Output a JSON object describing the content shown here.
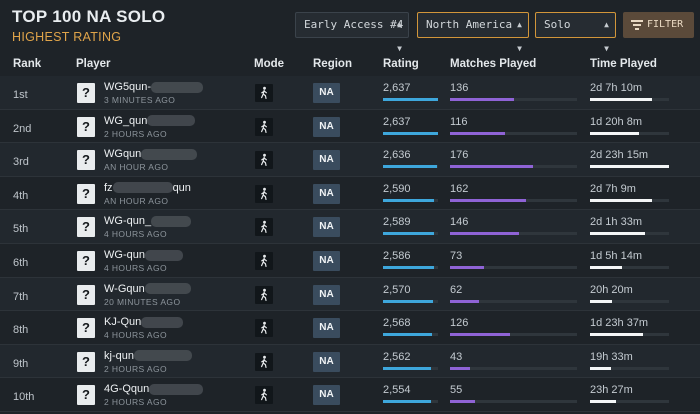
{
  "header": {
    "title": "TOP 100 NA SOLO",
    "subtitle": "HIGHEST RATING",
    "season_select": "Early Access #4",
    "region_select": "North America",
    "mode_select": "Solo",
    "filter_label": "FILTER"
  },
  "columns": {
    "rank": "Rank",
    "player": "Player",
    "mode": "Mode",
    "region": "Region",
    "rating": "Rating",
    "matches": "Matches Played",
    "time": "Time Played"
  },
  "colors": {
    "rating_bar": "#3ea7dc",
    "matches_bar": "#8f63d6",
    "time_bar": "#f4f6f7",
    "accent": "#d2963a"
  },
  "rows": [
    {
      "rank": "1st",
      "avatar": "?",
      "name": "WG5qun-",
      "name_suffix": "",
      "last_seen": "3 MINUTES AGO",
      "mode_icon": "walking-person-icon",
      "region": "NA",
      "rating": "2,637",
      "rating_pct": 1.0,
      "matches": "136",
      "matches_pct": 0.5,
      "time": "2d 7h 10m",
      "time_pct": 0.78
    },
    {
      "rank": "2nd",
      "avatar": "?",
      "name": "WG_qun",
      "name_suffix": "",
      "last_seen": "2 HOURS AGO",
      "mode_icon": "walking-person-icon",
      "region": "NA",
      "rating": "2,637",
      "rating_pct": 1.0,
      "matches": "116",
      "matches_pct": 0.43,
      "time": "1d 20h 8m",
      "time_pct": 0.62
    },
    {
      "rank": "3rd",
      "avatar": "?",
      "name": "WGqun",
      "name_suffix": "",
      "last_seen": "AN HOUR AGO",
      "mode_icon": "walking-person-icon",
      "region": "NA",
      "rating": "2,636",
      "rating_pct": 0.99,
      "matches": "176",
      "matches_pct": 0.65,
      "time": "2d 23h 15m",
      "time_pct": 1.0
    },
    {
      "rank": "4th",
      "avatar": "?",
      "name": "fz",
      "name_suffix": "qun",
      "last_seen": "AN HOUR AGO",
      "mode_icon": "walking-person-icon",
      "region": "NA",
      "rating": "2,590",
      "rating_pct": 0.93,
      "matches": "162",
      "matches_pct": 0.6,
      "time": "2d 7h 9m",
      "time_pct": 0.78
    },
    {
      "rank": "5th",
      "avatar": "?",
      "name": "WG-qun_",
      "name_suffix": "",
      "last_seen": "4 HOURS AGO",
      "mode_icon": "walking-person-icon",
      "region": "NA",
      "rating": "2,589",
      "rating_pct": 0.92,
      "matches": "146",
      "matches_pct": 0.54,
      "time": "2d 1h 33m",
      "time_pct": 0.7
    },
    {
      "rank": "6th",
      "avatar": "?",
      "name": "WG-qun",
      "name_suffix": "",
      "last_seen": "4 HOURS AGO",
      "mode_icon": "walking-person-icon",
      "region": "NA",
      "rating": "2,586",
      "rating_pct": 0.92,
      "matches": "73",
      "matches_pct": 0.27,
      "time": "1d 5h 14m",
      "time_pct": 0.41
    },
    {
      "rank": "7th",
      "avatar": "?",
      "name": "W-Gqun",
      "name_suffix": "",
      "last_seen": "20 MINUTES AGO",
      "mode_icon": "walking-person-icon",
      "region": "NA",
      "rating": "2,570",
      "rating_pct": 0.9,
      "matches": "62",
      "matches_pct": 0.23,
      "time": "20h 20m",
      "time_pct": 0.28
    },
    {
      "rank": "8th",
      "avatar": "?",
      "name": "KJ-Qun",
      "name_suffix": "",
      "last_seen": "4 HOURS AGO",
      "mode_icon": "walking-person-icon",
      "region": "NA",
      "rating": "2,568",
      "rating_pct": 0.89,
      "matches": "126",
      "matches_pct": 0.47,
      "time": "1d 23h 37m",
      "time_pct": 0.67
    },
    {
      "rank": "9th",
      "avatar": "?",
      "name": "kj-qun",
      "name_suffix": "",
      "last_seen": "2 HOURS AGO",
      "mode_icon": "walking-person-icon",
      "region": "NA",
      "rating": "2,562",
      "rating_pct": 0.88,
      "matches": "43",
      "matches_pct": 0.16,
      "time": "19h 33m",
      "time_pct": 0.27
    },
    {
      "rank": "10th",
      "avatar": "?",
      "name": "4G-Qqun",
      "name_suffix": "",
      "last_seen": "2 HOURS AGO",
      "mode_icon": "walking-person-icon",
      "region": "NA",
      "rating": "2,554",
      "rating_pct": 0.87,
      "matches": "55",
      "matches_pct": 0.2,
      "time": "23h 27m",
      "time_pct": 0.33
    }
  ]
}
